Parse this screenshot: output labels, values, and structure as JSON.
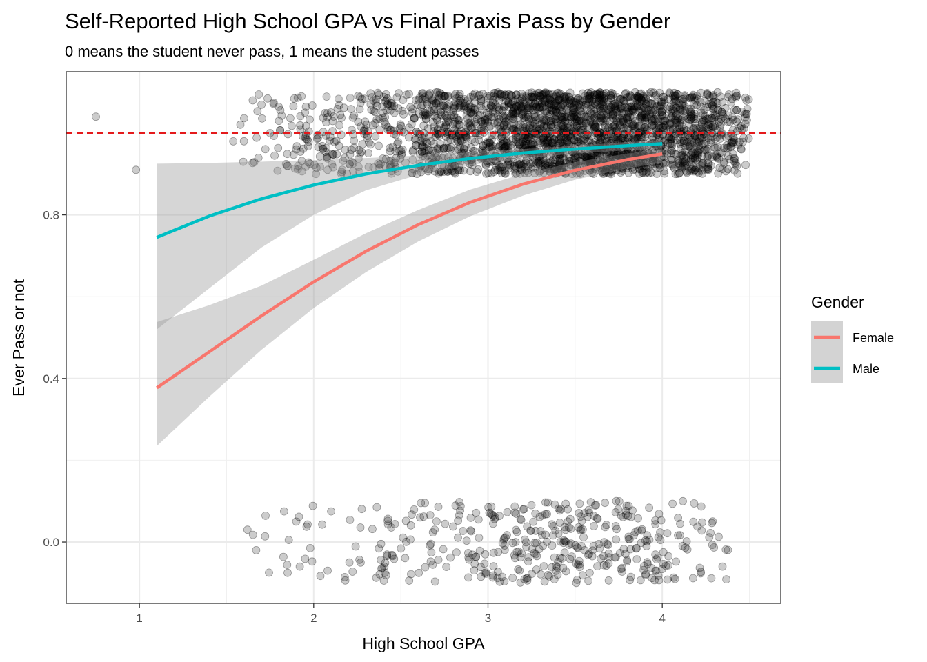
{
  "chart_data": {
    "type": "scatter",
    "title": "Self-Reported High School GPA vs Final Praxis Pass by Gender",
    "subtitle": "0 means the student never pass, 1 means the student passes",
    "xlabel": "High School GPA",
    "ylabel": "Ever Pass or not",
    "xlim": [
      0.58,
      4.68
    ],
    "ylim": [
      -0.15,
      1.15
    ],
    "x_ticks": [
      1,
      2,
      3,
      4
    ],
    "x_tick_labels": [
      "1",
      "2",
      "3",
      "4"
    ],
    "y_ticks": [
      0.0,
      0.4,
      0.8
    ],
    "y_tick_labels": [
      "0.0",
      "0.4",
      "0.8"
    ],
    "grid": true,
    "reference_line": {
      "y": 1.0,
      "style": "dashed",
      "color": "#e41a1c"
    },
    "points": {
      "description_jitter": "jittered 0/1 outcome",
      "color": "#000000",
      "opacity": 0.2,
      "pass_points_approx": 2600,
      "fail_points_approx": 420
    },
    "legend": {
      "title": "Gender",
      "position": "right",
      "entries": [
        {
          "label": "Female",
          "color": "#F8766D"
        },
        {
          "label": "Male",
          "color": "#00BFC4"
        }
      ]
    },
    "series": [
      {
        "name": "Female",
        "color": "#F8766D",
        "x": [
          1.1,
          1.4,
          1.7,
          2.0,
          2.3,
          2.6,
          2.9,
          3.2,
          3.5,
          3.8,
          4.0
        ],
        "y": [
          0.377,
          0.465,
          0.553,
          0.636,
          0.711,
          0.776,
          0.831,
          0.875,
          0.909,
          0.935,
          0.949
        ],
        "ci_low": [
          0.235,
          0.355,
          0.47,
          0.572,
          0.66,
          0.735,
          0.797,
          0.847,
          0.886,
          0.914,
          0.928
        ],
        "ci_high": [
          0.538,
          0.579,
          0.627,
          0.69,
          0.755,
          0.812,
          0.862,
          0.9,
          0.929,
          0.95,
          0.962
        ]
      },
      {
        "name": "Male",
        "color": "#00BFC4",
        "x": [
          1.1,
          1.4,
          1.7,
          2.0,
          2.3,
          2.6,
          2.9,
          3.2,
          3.5,
          3.8,
          4.0
        ],
        "y": [
          0.745,
          0.797,
          0.839,
          0.873,
          0.9,
          0.921,
          0.938,
          0.951,
          0.961,
          0.969,
          0.974
        ],
        "ci_low": [
          0.52,
          0.62,
          0.72,
          0.8,
          0.86,
          0.898,
          0.922,
          0.938,
          0.95,
          0.958,
          0.962
        ],
        "ci_high": [
          0.925,
          0.927,
          0.93,
          0.934,
          0.939,
          0.945,
          0.953,
          0.961,
          0.969,
          0.978,
          0.983
        ]
      }
    ]
  }
}
